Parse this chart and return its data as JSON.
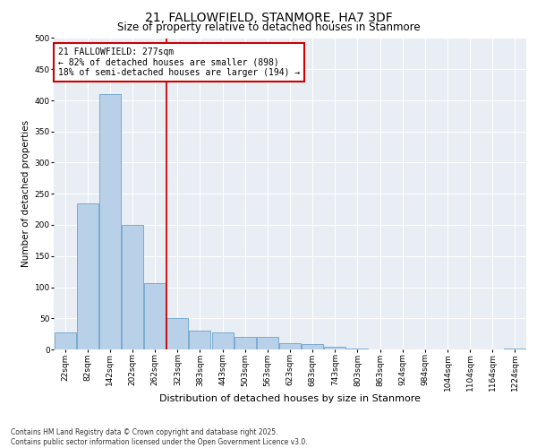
{
  "title": "21, FALLOWFIELD, STANMORE, HA7 3DF",
  "subtitle": "Size of property relative to detached houses in Stanmore",
  "xlabel": "Distribution of detached houses by size in Stanmore",
  "ylabel": "Number of detached properties",
  "categories": [
    "22sqm",
    "82sqm",
    "142sqm",
    "202sqm",
    "262sqm",
    "323sqm",
    "383sqm",
    "443sqm",
    "503sqm",
    "563sqm",
    "623sqm",
    "683sqm",
    "743sqm",
    "803sqm",
    "863sqm",
    "924sqm",
    "984sqm",
    "1044sqm",
    "1104sqm",
    "1164sqm",
    "1224sqm"
  ],
  "values": [
    28,
    235,
    410,
    200,
    107,
    50,
    30,
    27,
    20,
    20,
    10,
    8,
    5,
    1,
    0,
    0,
    0,
    0,
    0,
    0,
    1
  ],
  "bar_color": "#b8d0e8",
  "bar_edge_color": "#6ba3cc",
  "property_line_x": 4.5,
  "property_line_color": "#cc0000",
  "annotation_text": "21 FALLOWFIELD: 277sqm\n← 82% of detached houses are smaller (898)\n18% of semi-detached houses are larger (194) →",
  "annotation_box_color": "#cc0000",
  "ylim": [
    0,
    500
  ],
  "yticks": [
    0,
    50,
    100,
    150,
    200,
    250,
    300,
    350,
    400,
    450,
    500
  ],
  "background_color": "#e8eef4",
  "footer": "Contains HM Land Registry data © Crown copyright and database right 2025.\nContains public sector information licensed under the Open Government Licence v3.0.",
  "title_fontsize": 10,
  "subtitle_fontsize": 8.5,
  "xlabel_fontsize": 8,
  "ylabel_fontsize": 7.5,
  "tick_fontsize": 6.5,
  "footer_fontsize": 5.5
}
